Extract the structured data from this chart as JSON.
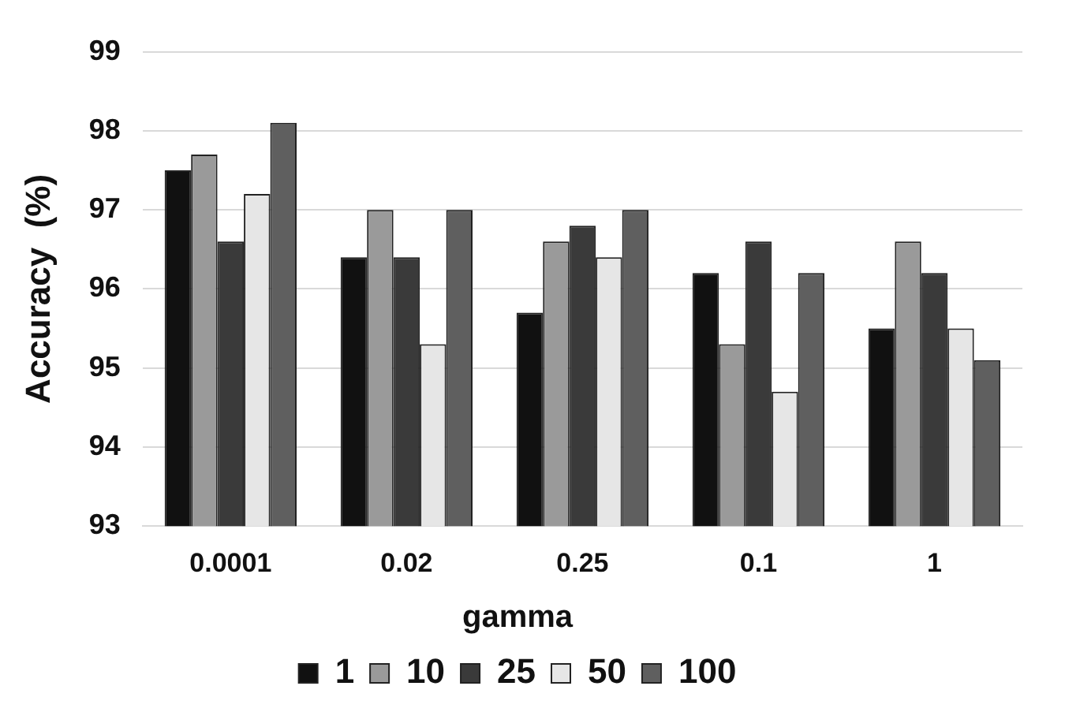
{
  "chart_data": {
    "type": "bar",
    "ylabel": "Accuracy  (%)",
    "legend_title": "gamma",
    "categories": [
      "0.0001",
      "0.02",
      "0.25",
      "0.1",
      "1"
    ],
    "series": [
      {
        "name": "1",
        "color": "#111111",
        "values": [
          97.5,
          96.4,
          95.7,
          96.2,
          95.5
        ]
      },
      {
        "name": "10",
        "color": "#9a9a9a",
        "values": [
          97.7,
          97.0,
          96.6,
          95.3,
          96.6
        ]
      },
      {
        "name": "25",
        "color": "#3a3a3a",
        "values": [
          96.6,
          96.4,
          96.8,
          96.6,
          96.2
        ]
      },
      {
        "name": "50",
        "color": "#e6e6e6",
        "values": [
          97.2,
          95.3,
          96.4,
          94.7,
          95.5
        ]
      },
      {
        "name": "100",
        "color": "#5f5f5f",
        "values": [
          98.1,
          97.0,
          97.0,
          96.2,
          95.1
        ]
      }
    ],
    "ylim": [
      93,
      99
    ],
    "yticks": [
      93,
      94,
      95,
      96,
      97,
      98,
      99
    ],
    "grid": "y",
    "legend": "bottom"
  }
}
